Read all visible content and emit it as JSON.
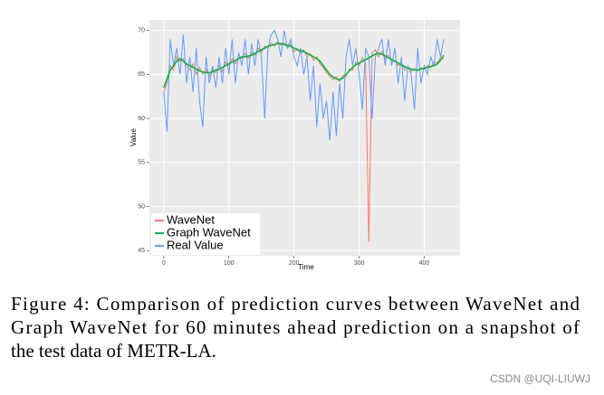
{
  "chart_data": {
    "type": "line",
    "xlabel": "Time",
    "ylabel": "Value",
    "x": [
      0,
      5,
      10,
      15,
      20,
      25,
      30,
      35,
      40,
      45,
      50,
      55,
      60,
      65,
      70,
      75,
      80,
      85,
      90,
      95,
      100,
      105,
      110,
      115,
      120,
      125,
      130,
      135,
      140,
      145,
      150,
      155,
      160,
      165,
      170,
      175,
      180,
      185,
      190,
      195,
      200,
      205,
      210,
      215,
      220,
      225,
      230,
      235,
      240,
      245,
      250,
      255,
      260,
      265,
      270,
      275,
      280,
      285,
      290,
      295,
      300,
      305,
      310,
      315,
      320,
      325,
      330,
      335,
      340,
      345,
      350,
      355,
      360,
      365,
      370,
      375,
      380,
      385,
      390,
      395,
      400,
      405,
      410,
      415,
      420,
      425,
      430
    ],
    "series": [
      {
        "name": "WaveNet",
        "color": "#f8766d",
        "values": [
          63,
          64,
          66,
          65.5,
          67,
          66.5,
          66.8,
          66,
          65.5,
          66.2,
          65,
          65.8,
          65,
          65.6,
          64.8,
          65.5,
          65.2,
          66,
          65.3,
          66.4,
          66,
          66.8,
          66.2,
          67.2,
          66.8,
          67.4,
          66.8,
          67.5,
          67.2,
          68,
          67.5,
          68.2,
          68,
          68.6,
          68.2,
          68.8,
          68.3,
          68.6,
          68,
          68.5,
          67.6,
          68,
          67.4,
          67.8,
          67,
          67.4,
          66.6,
          67,
          66.2,
          65.8,
          65.2,
          64.8,
          64.4,
          64.8,
          64.2,
          64.9,
          64.8,
          65.6,
          65.5,
          66.4,
          66,
          66.9,
          66.2,
          46,
          67.4,
          67.8,
          67,
          67.6,
          66.8,
          67.2,
          66.4,
          66.6,
          66,
          66.4,
          65.5,
          65.8,
          65.3,
          65.7,
          65.4,
          65.8,
          65.6,
          66,
          65.8,
          66.4,
          66.3,
          66.9,
          66.8
        ]
      },
      {
        "name": "Graph WaveNet",
        "color": "#00ba38",
        "values": [
          63.5,
          64.5,
          65.5,
          66,
          66.5,
          66.8,
          66.5,
          66.2,
          66,
          65.8,
          65.6,
          65.4,
          65.3,
          65.2,
          65.2,
          65.3,
          65.5,
          65.6,
          65.8,
          66,
          66.2,
          66.4,
          66.6,
          66.8,
          67,
          67,
          67.1,
          67.2,
          67.4,
          67.6,
          67.8,
          68,
          68.2,
          68.3,
          68.4,
          68.5,
          68.5,
          68.4,
          68.3,
          68.2,
          68,
          67.8,
          67.7,
          67.6,
          67.4,
          67.2,
          67,
          66.8,
          66.5,
          66,
          65.5,
          65,
          64.7,
          64.5,
          64.4,
          64.6,
          65,
          65.4,
          65.8,
          66.1,
          66.3,
          66.5,
          66.7,
          66.9,
          67.1,
          67.3,
          67.4,
          67.3,
          67.1,
          66.9,
          66.7,
          66.5,
          66.3,
          66.1,
          65.9,
          65.7,
          65.6,
          65.5,
          65.5,
          65.6,
          65.7,
          65.8,
          65.9,
          66,
          66.2,
          66.6,
          67.2
        ]
      },
      {
        "name": "Real Value",
        "color": "#619cff",
        "values": [
          63,
          58.5,
          69,
          66,
          68,
          65,
          69.5,
          64,
          67,
          63,
          68,
          62,
          59,
          67,
          64,
          66,
          63.5,
          67,
          64,
          68,
          65,
          69,
          64,
          67.5,
          66,
          69,
          65,
          68.5,
          66,
          69,
          67,
          60,
          68,
          69.5,
          70,
          69,
          67,
          70,
          68,
          69,
          67,
          66,
          68,
          65,
          67,
          62,
          66,
          59,
          64,
          60,
          62,
          57.5,
          63,
          58,
          64,
          60,
          67,
          69,
          66,
          68,
          65,
          61,
          68,
          67,
          60,
          67,
          68,
          69,
          66,
          69,
          66,
          68,
          64,
          67,
          62,
          66,
          65,
          61,
          68,
          64,
          66,
          65,
          67,
          66,
          69,
          67,
          69
        ]
      }
    ],
    "xlim": [
      -22,
      455
    ],
    "ylim": [
      44.4,
      71.2
    ],
    "xticks": [
      0,
      100,
      200,
      300,
      400
    ],
    "yticks": [
      45,
      50,
      55,
      60,
      65,
      70
    ],
    "grid": true,
    "legend": "bottom-left"
  },
  "caption": [
    "Figure 4: Comparison of prediction curves between WaveNet and",
    "Graph WaveNet for 60 minutes ahead prediction on a snapshot of",
    "the test data of METR-LA."
  ],
  "watermark": "CSDN @UQI-LIUWJ"
}
